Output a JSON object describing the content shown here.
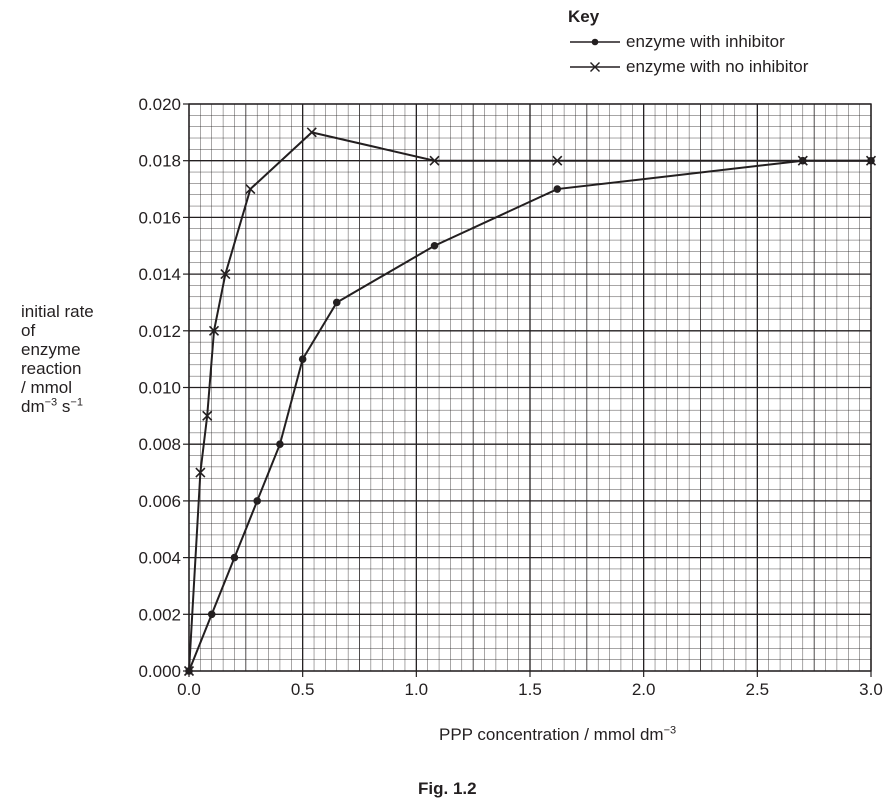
{
  "chart_data": {
    "type": "line",
    "xlabel": "PPP concentration / mmol dm−3",
    "ylabel": [
      "initial rate",
      "of",
      "enzyme",
      "reaction",
      "/ mmol",
      "dm−3 s−1"
    ],
    "xlim": [
      0,
      3.0
    ],
    "ylim": [
      0,
      0.02
    ],
    "x_ticks": [
      "0.0",
      "0.5",
      "1.0",
      "1.5",
      "2.0",
      "2.5",
      "3.0"
    ],
    "y_ticks": [
      "0.000",
      "0.002",
      "0.004",
      "0.006",
      "0.008",
      "0.010",
      "0.012",
      "0.014",
      "0.016",
      "0.018",
      "0.020"
    ],
    "grid": true,
    "legend_title": "Key",
    "legend_position": "top-right",
    "series": [
      {
        "name": "enzyme with inhibitor",
        "marker": "dot",
        "color": "#231f20",
        "x": [
          0,
          0.1,
          0.2,
          0.3,
          0.4,
          0.5,
          0.65,
          1.08,
          1.62,
          2.7,
          3.0
        ],
        "y": [
          0,
          0.002,
          0.004,
          0.006,
          0.008,
          0.011,
          0.013,
          0.015,
          0.017,
          0.018,
          0.018
        ]
      },
      {
        "name": "enzyme with no inhibitor",
        "marker": "cross",
        "color": "#231f20",
        "x": [
          0,
          0.05,
          0.08,
          0.11,
          0.16,
          0.27,
          0.54,
          1.08,
          1.62,
          2.7,
          3.0
        ],
        "y": [
          0,
          0.007,
          0.009,
          0.012,
          0.014,
          0.017,
          0.019,
          0.018,
          0.018,
          0.018,
          0.018
        ]
      }
    ],
    "caption_partial": "Fig. 1.2"
  }
}
